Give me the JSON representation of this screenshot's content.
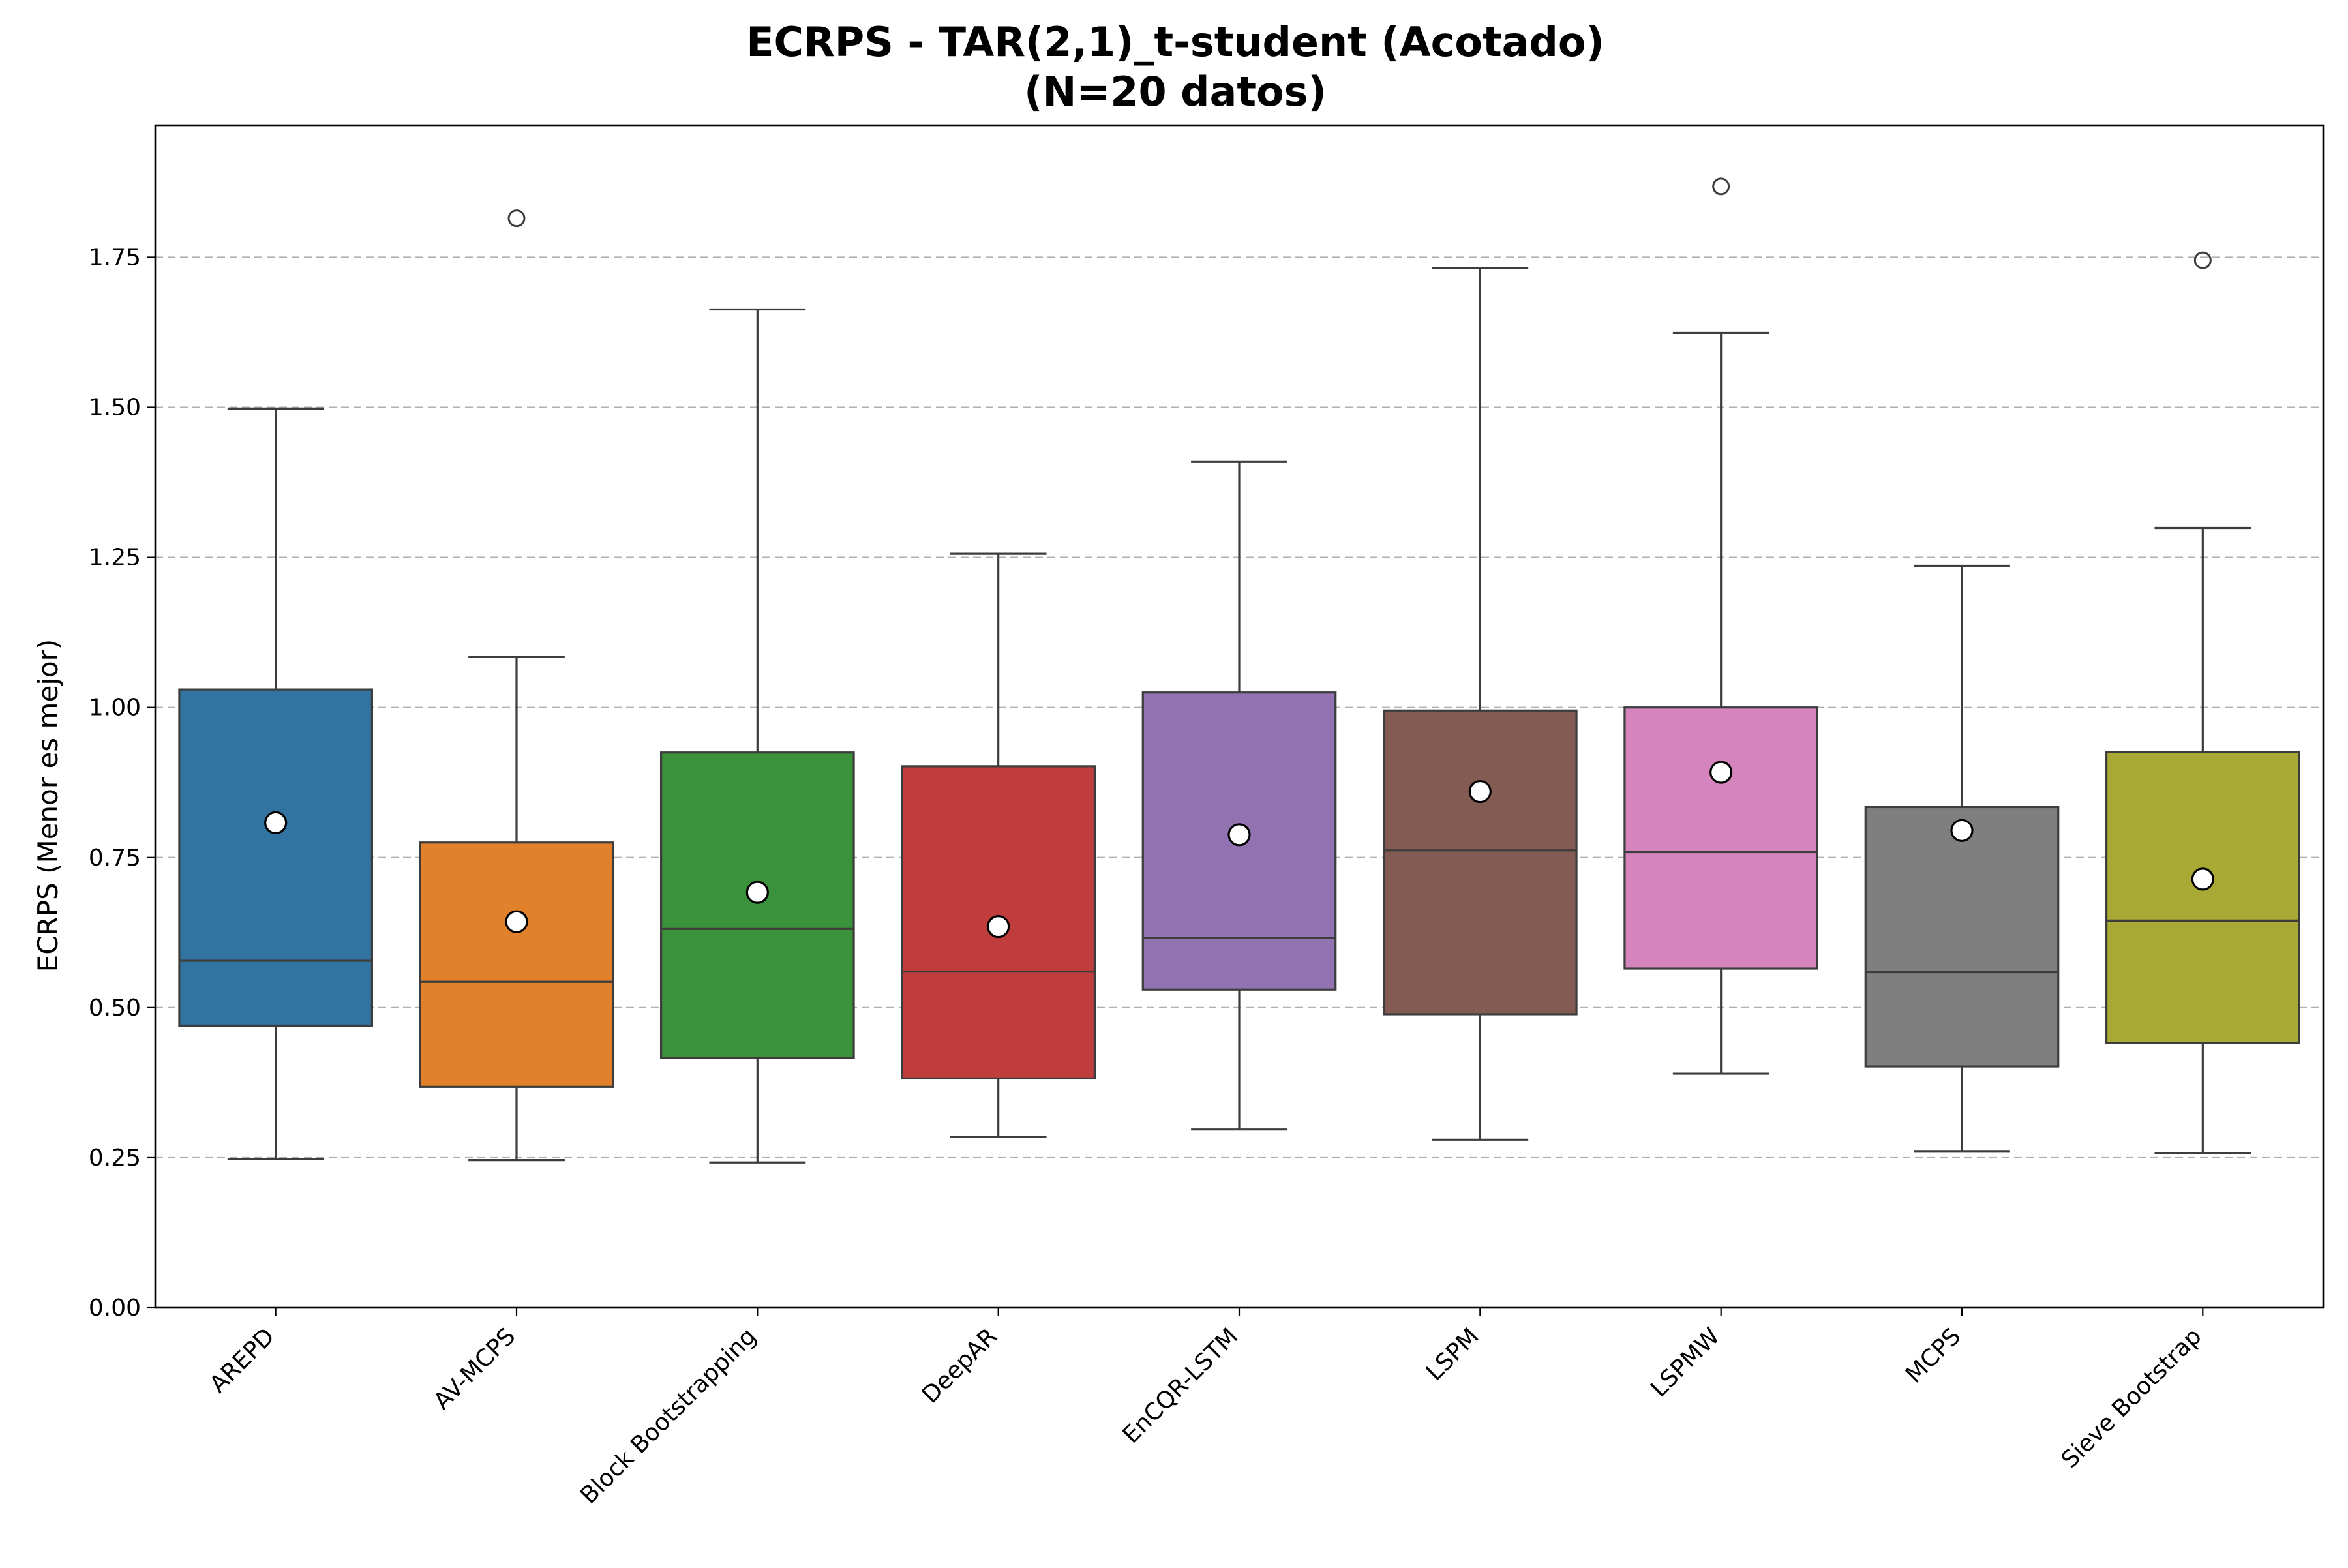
{
  "chart_data": {
    "type": "box",
    "title": "ECRPS - TAR(2,1)_t-student (Acotado)",
    "subtitle": "(N=20 datos)",
    "xlabel": "",
    "ylabel": "ECRPS (Menor es mejor)",
    "ylim": [
      0,
      1.97
    ],
    "yticks": [
      "0.00",
      "0.25",
      "0.50",
      "0.75",
      "1.00",
      "1.25",
      "1.50",
      "1.75"
    ],
    "grid": "y-dashed",
    "categories": [
      "AREPD",
      "AV-MCPS",
      "Block Bootstrapping",
      "DeepAR",
      "EnCQR-LSTM",
      "LSPM",
      "LSPMW",
      "MCPS",
      "Sieve Bootstrap"
    ],
    "series": [
      {
        "category": "AREPD",
        "color": "#3274a1",
        "whisker_low": 0.248,
        "q1": 0.47,
        "median": 0.578,
        "q3": 1.03,
        "whisker_high": 1.498,
        "mean": 0.808,
        "outliers": []
      },
      {
        "category": "AV-MCPS",
        "color": "#e1812c",
        "whisker_low": 0.246,
        "q1": 0.368,
        "median": 0.543,
        "q3": 0.775,
        "whisker_high": 1.084,
        "mean": 0.643,
        "outliers": [
          1.815
        ]
      },
      {
        "category": "Block Bootstrapping",
        "color": "#3a923a",
        "whisker_low": 0.242,
        "q1": 0.416,
        "median": 0.631,
        "q3": 0.925,
        "whisker_high": 1.663,
        "mean": 0.692,
        "outliers": []
      },
      {
        "category": "DeepAR",
        "color": "#c03d3e",
        "whisker_low": 0.285,
        "q1": 0.382,
        "median": 0.56,
        "q3": 0.902,
        "whisker_high": 1.256,
        "mean": 0.635,
        "outliers": []
      },
      {
        "category": "EnCQR-LSTM",
        "color": "#9372b2",
        "whisker_low": 0.297,
        "q1": 0.53,
        "median": 0.616,
        "q3": 1.025,
        "whisker_high": 1.409,
        "mean": 0.788,
        "outliers": []
      },
      {
        "category": "LSPM",
        "color": "#845b53",
        "whisker_low": 0.28,
        "q1": 0.489,
        "median": 0.762,
        "q3": 0.995,
        "whisker_high": 1.732,
        "mean": 0.86,
        "outliers": []
      },
      {
        "category": "LSPMW",
        "color": "#d684bd",
        "whisker_low": 0.39,
        "q1": 0.565,
        "median": 0.759,
        "q3": 1.0,
        "whisker_high": 1.624,
        "mean": 0.892,
        "outliers": [
          1.868
        ]
      },
      {
        "category": "MCPS",
        "color": "#7f7f7f",
        "whisker_low": 0.261,
        "q1": 0.402,
        "median": 0.559,
        "q3": 0.834,
        "whisker_high": 1.236,
        "mean": 0.795,
        "outliers": []
      },
      {
        "category": "Sieve Bootstrap",
        "color": "#a9aa35",
        "whisker_low": 0.258,
        "q1": 0.441,
        "median": 0.645,
        "q3": 0.926,
        "whisker_high": 1.299,
        "mean": 0.714,
        "outliers": [
          1.745
        ]
      }
    ]
  }
}
